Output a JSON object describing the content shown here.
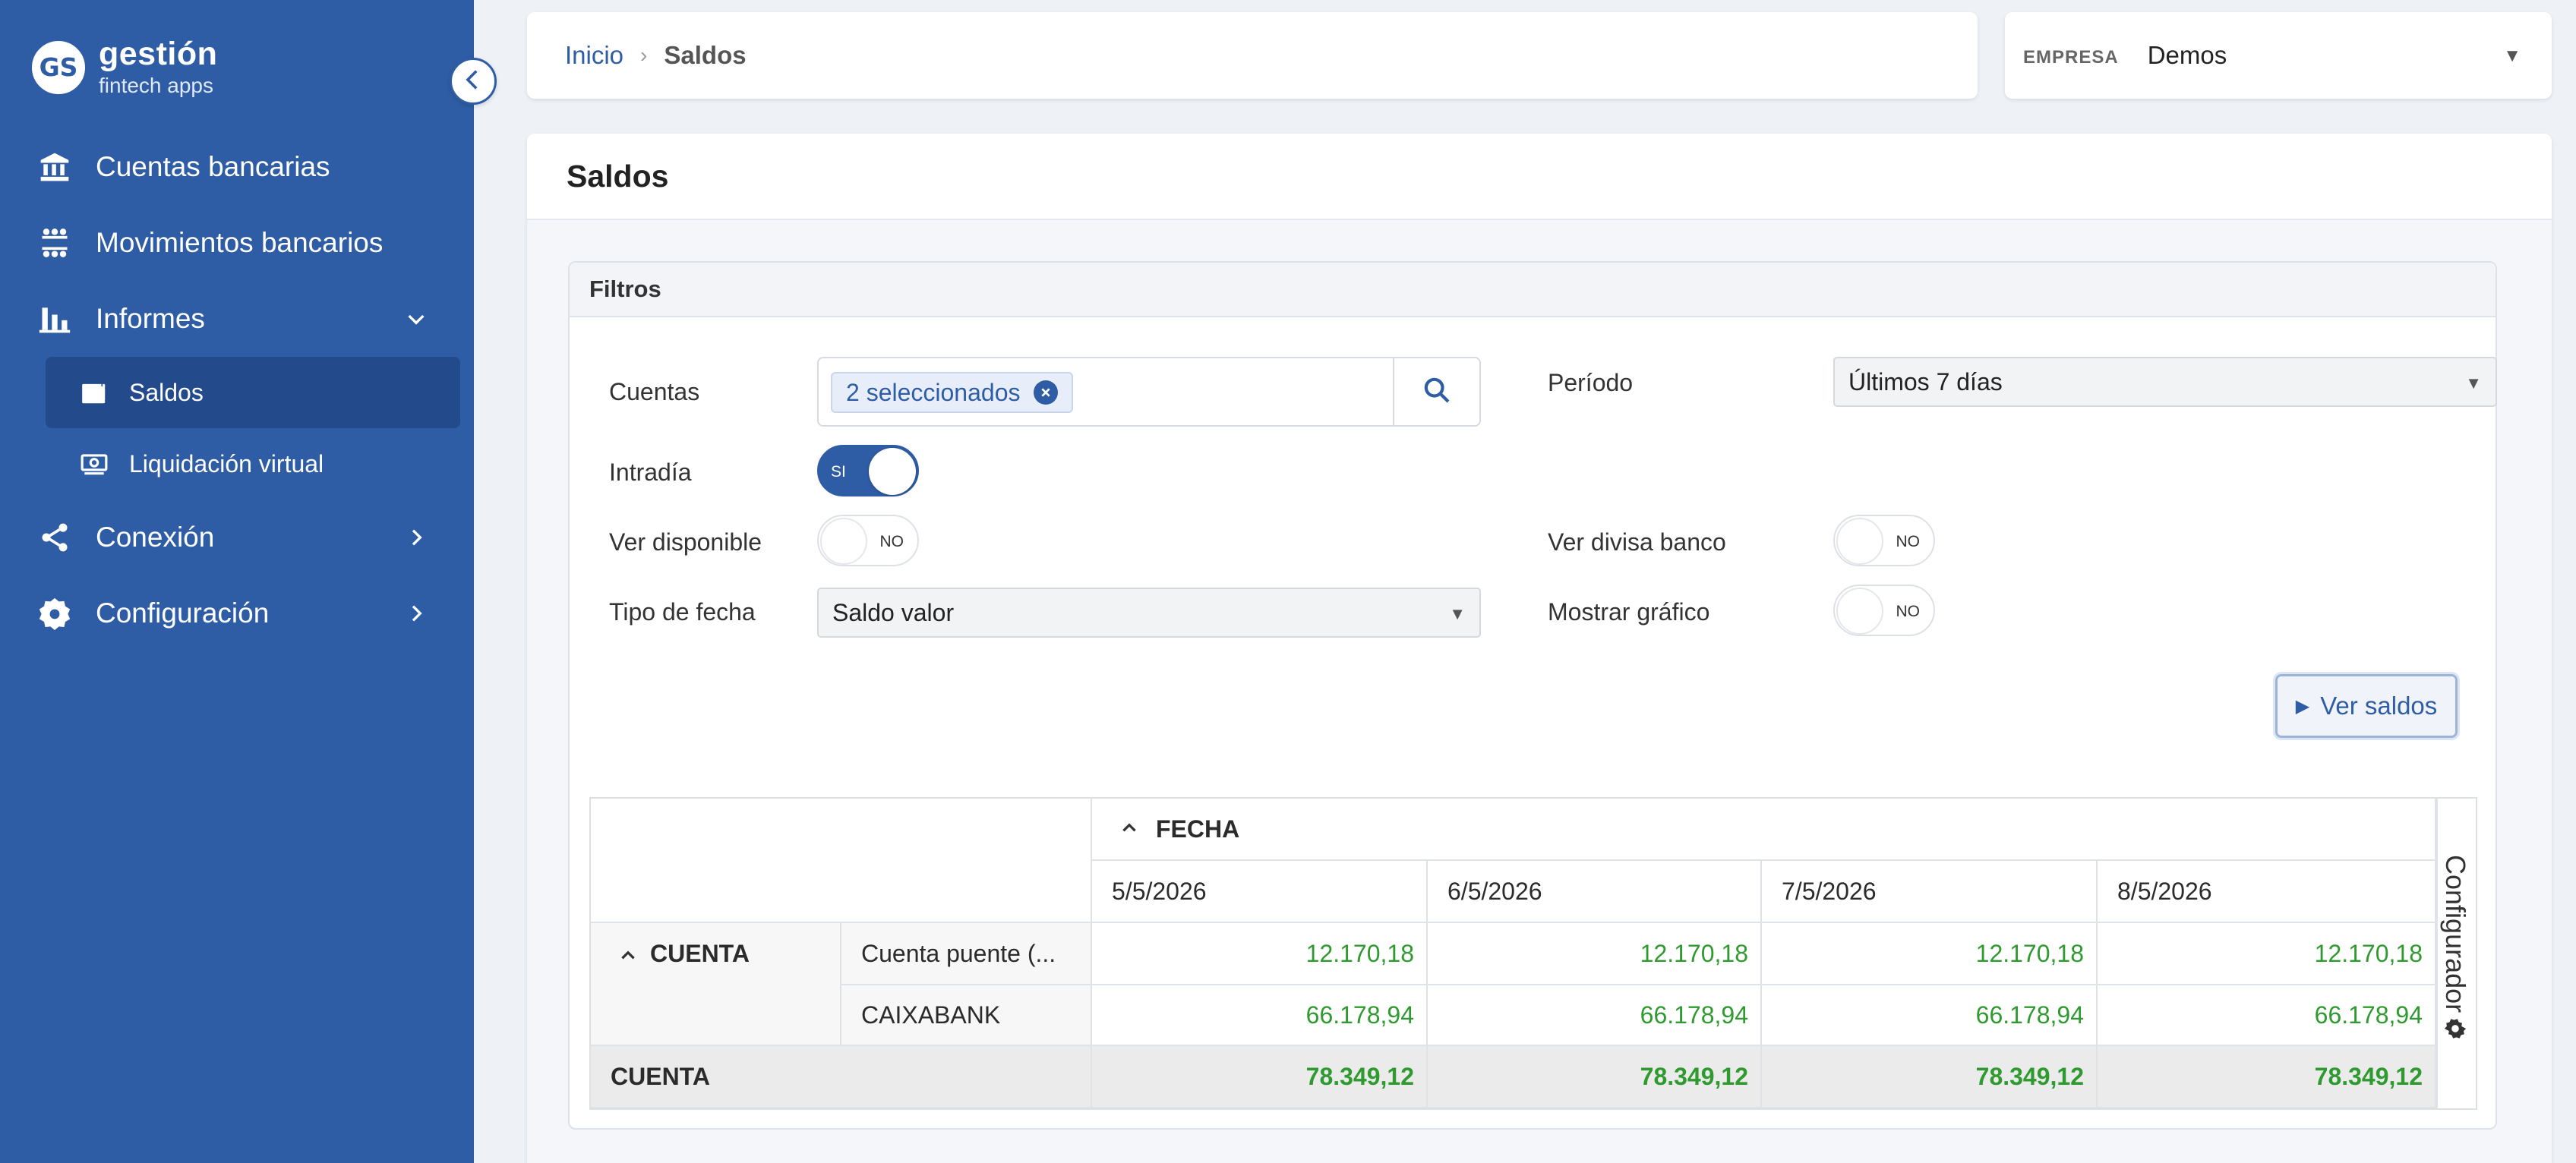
{
  "brand": {
    "badge": "GS",
    "title": "gestión",
    "subtitle": "fintech apps"
  },
  "sidebar": {
    "items": [
      {
        "label": "Cuentas bancarias",
        "icon": "bank-icon"
      },
      {
        "label": "Movimientos bancarios",
        "icon": "transfer-icon"
      },
      {
        "label": "Informes",
        "icon": "bar-chart-icon",
        "expanded": true
      },
      {
        "label": "Conexión",
        "icon": "share-icon"
      },
      {
        "label": "Configuración",
        "icon": "settings-icon"
      }
    ],
    "subitems": [
      {
        "label": "Saldos",
        "icon": "wallet-icon",
        "active": true
      },
      {
        "label": "Liquidación virtual",
        "icon": "cash-icon"
      }
    ]
  },
  "breadcrumb": {
    "home": "Inicio",
    "current": "Saldos"
  },
  "company": {
    "label": "EMPRESA",
    "value": "Demos"
  },
  "page": {
    "title": "Saldos"
  },
  "filters": {
    "title": "Filtros",
    "cuentas_label": "Cuentas",
    "cuentas_chip": "2 seleccionados",
    "periodo_label": "Período",
    "periodo_value": "Últimos 7 días",
    "intradia_label": "Intradía",
    "intradia_state": "SI",
    "ver_disponible_label": "Ver disponible",
    "ver_disponible_state": "NO",
    "ver_divisa_label": "Ver divisa banco",
    "ver_divisa_state": "NO",
    "tipo_fecha_label": "Tipo de fecha",
    "tipo_fecha_value": "Saldo valor",
    "mostrar_grafico_label": "Mostrar gráfico",
    "mostrar_grafico_state": "NO",
    "submit_label": "Ver saldos"
  },
  "pivot": {
    "column_field": "FECHA",
    "row_field": "CUENTA",
    "dates": [
      "5/5/2026",
      "6/5/2026",
      "7/5/2026",
      "8/5/2026"
    ],
    "rows": [
      {
        "account": "Cuenta puente (...",
        "values": [
          "12.170,18",
          "12.170,18",
          "12.170,18",
          "12.170,18"
        ]
      },
      {
        "account": "CAIXABANK",
        "values": [
          "66.178,94",
          "66.178,94",
          "66.178,94",
          "66.178,94"
        ]
      }
    ],
    "total_label": "CUENTA",
    "totals": [
      "78.349,12",
      "78.349,12",
      "78.349,12",
      "78.349,12"
    ],
    "configurator_label": "Configurador"
  },
  "colors": {
    "primary": "#2f5da5",
    "positive": "#2f9a2f"
  }
}
